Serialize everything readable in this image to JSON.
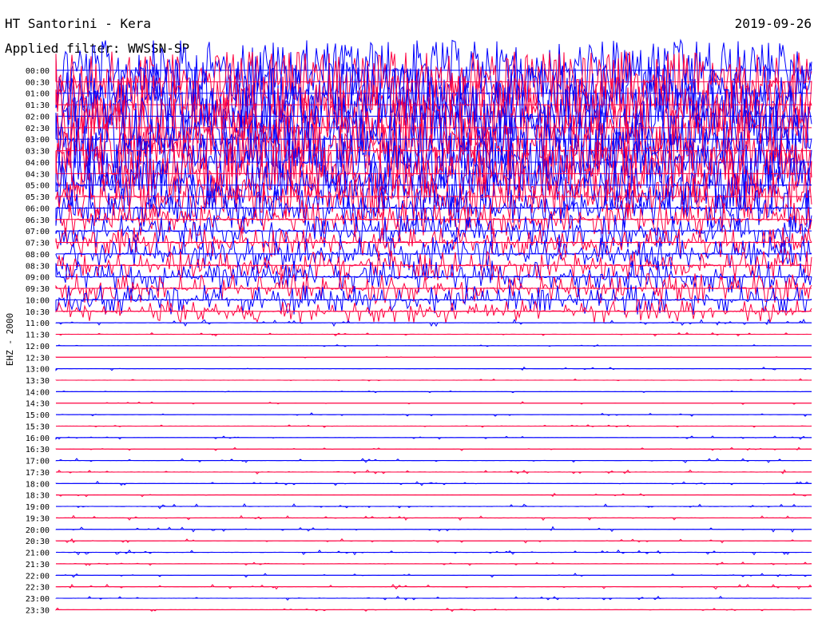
{
  "header": {
    "station": "HT Santorini - Kera",
    "date": "2019-09-26",
    "filter": "Applied filter: WWSSN-SP"
  },
  "colors": {
    "blue": "#0000ff",
    "red": "#ff0040",
    "background": "#ffffff"
  },
  "chart_data": {
    "type": "line",
    "title": "HT Santorini - Kera",
    "ylabel": "EHZ - 2000",
    "rows": [
      "00:00",
      "00:30",
      "01:00",
      "01:30",
      "02:00",
      "02:30",
      "03:00",
      "03:30",
      "04:00",
      "04:30",
      "05:00",
      "05:30",
      "06:00",
      "06:30",
      "07:00",
      "07:30",
      "08:00",
      "08:30",
      "09:00",
      "09:30",
      "10:00",
      "10:30",
      "11:00",
      "11:30",
      "12:00",
      "12:30",
      "13:00",
      "13:30",
      "14:00",
      "14:30",
      "15:00",
      "15:30",
      "16:00",
      "16:30",
      "17:00",
      "17:30",
      "18:00",
      "18:30",
      "19:00",
      "19:30",
      "20:00",
      "20:30",
      "21:00",
      "21:30",
      "22:00",
      "22:30",
      "23:00",
      "23:30"
    ],
    "row_colors": [
      "blue",
      "red",
      "blue",
      "red",
      "blue",
      "red",
      "blue",
      "red",
      "blue",
      "red",
      "blue",
      "red",
      "blue",
      "red",
      "blue",
      "red",
      "blue",
      "red",
      "blue",
      "red",
      "blue",
      "red",
      "blue",
      "red",
      "blue",
      "red",
      "blue",
      "red",
      "blue",
      "red",
      "blue",
      "red",
      "blue",
      "red",
      "blue",
      "red",
      "blue",
      "red",
      "blue",
      "red",
      "blue",
      "red",
      "blue",
      "red",
      "blue",
      "red",
      "blue",
      "red"
    ],
    "activity_level": [
      0.9,
      0.9,
      0.95,
      0.9,
      0.95,
      0.9,
      0.9,
      0.85,
      0.9,
      0.85,
      0.8,
      0.7,
      0.6,
      0.5,
      0.5,
      0.45,
      0.5,
      0.45,
      0.5,
      0.45,
      0.45,
      0.35,
      0.1,
      0.05,
      0.03,
      0.02,
      0.05,
      0.04,
      0.03,
      0.04,
      0.05,
      0.04,
      0.05,
      0.05,
      0.06,
      0.06,
      0.06,
      0.05,
      0.08,
      0.07,
      0.08,
      0.06,
      0.07,
      0.05,
      0.06,
      0.07,
      0.06,
      0.05
    ],
    "grid": true
  }
}
